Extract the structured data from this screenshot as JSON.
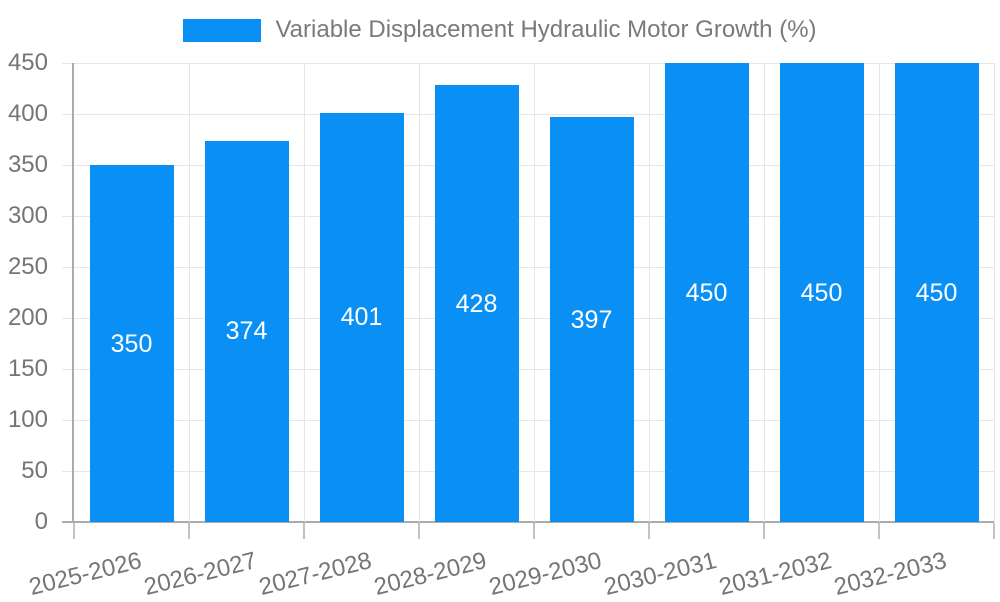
{
  "chart_data": {
    "type": "bar",
    "title": "",
    "legend": {
      "label": "Variable Displacement Hydraulic Motor Growth (%)",
      "position": "top"
    },
    "categories": [
      "2025-2026",
      "2026-2027",
      "2027-2028",
      "2028-2029",
      "2029-2030",
      "2030-2031",
      "2031-2032",
      "2032-2033"
    ],
    "values": [
      350,
      374,
      401,
      428,
      397,
      450,
      450,
      450
    ],
    "xlabel": "",
    "ylabel": "",
    "ylim": [
      0,
      450
    ],
    "ytick_step": 50,
    "grid": true,
    "colors": {
      "bar": "#0a90f5",
      "bar_value_label": "#ffffff",
      "axis_line": "#ababab",
      "gridline": "#e6e6e6",
      "tick_mark": "#c2c2c2",
      "tick_text": "#757575",
      "legend_text": "#7a7a7a",
      "background": "#ffffff"
    }
  }
}
